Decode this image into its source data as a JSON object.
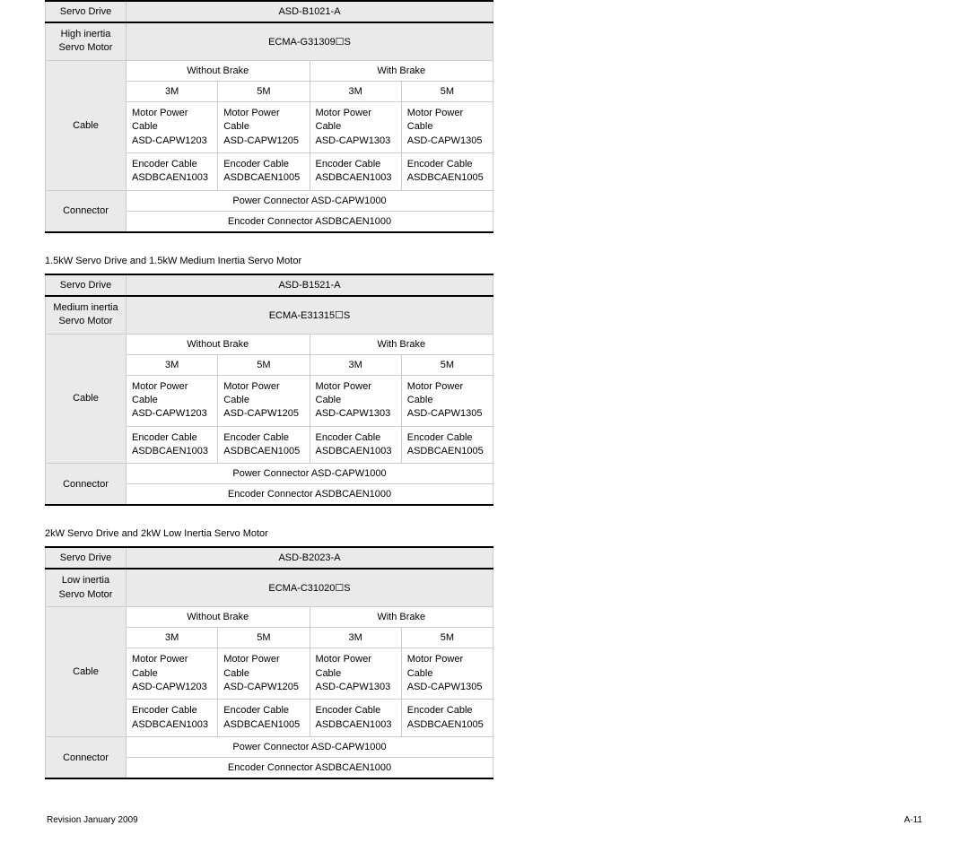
{
  "labels": {
    "servoDrive": "Servo Drive",
    "highInertia": "High inertia",
    "mediumInertia": "Medium inertia",
    "lowInertia": "Low inertia",
    "servoMotor": "Servo Motor",
    "cable": "Cable",
    "connector": "Connector",
    "withoutBrake": "Without Brake",
    "withBrake": "With Brake",
    "len3m": "3M",
    "len5m": "5M",
    "motorPowerCable": "Motor Power Cable",
    "encoderCable": "Encoder Cable",
    "powerConnector": "Power Connector ASD-CAPW1000",
    "encoderConnector": "Encoder Connector ASDBCAEN1000"
  },
  "codes": {
    "mpc1203": "ASD-CAPW1203",
    "mpc1205": "ASD-CAPW1205",
    "mpc1303": "ASD-CAPW1303",
    "mpc1305": "ASD-CAPW1305",
    "enc1003": "ASDBCAEN1003",
    "enc1005": "ASDBCAEN1005"
  },
  "table1": {
    "drive": "ASD-B1021-A",
    "motor": "ECMA-G31309☐S"
  },
  "table2": {
    "caption": "1.5kW Servo Drive and 1.5kW Medium Inertia Servo Motor",
    "drive": "ASD-B1521-A",
    "motor": "ECMA-E31315☐S"
  },
  "table3": {
    "caption": "2kW Servo Drive and 2kW Low Inertia Servo Motor",
    "drive": "ASD-B2023-A",
    "motor": "ECMA-C31020☐S"
  },
  "footer": {
    "left": "Revision January 2009",
    "right": "A-11"
  }
}
